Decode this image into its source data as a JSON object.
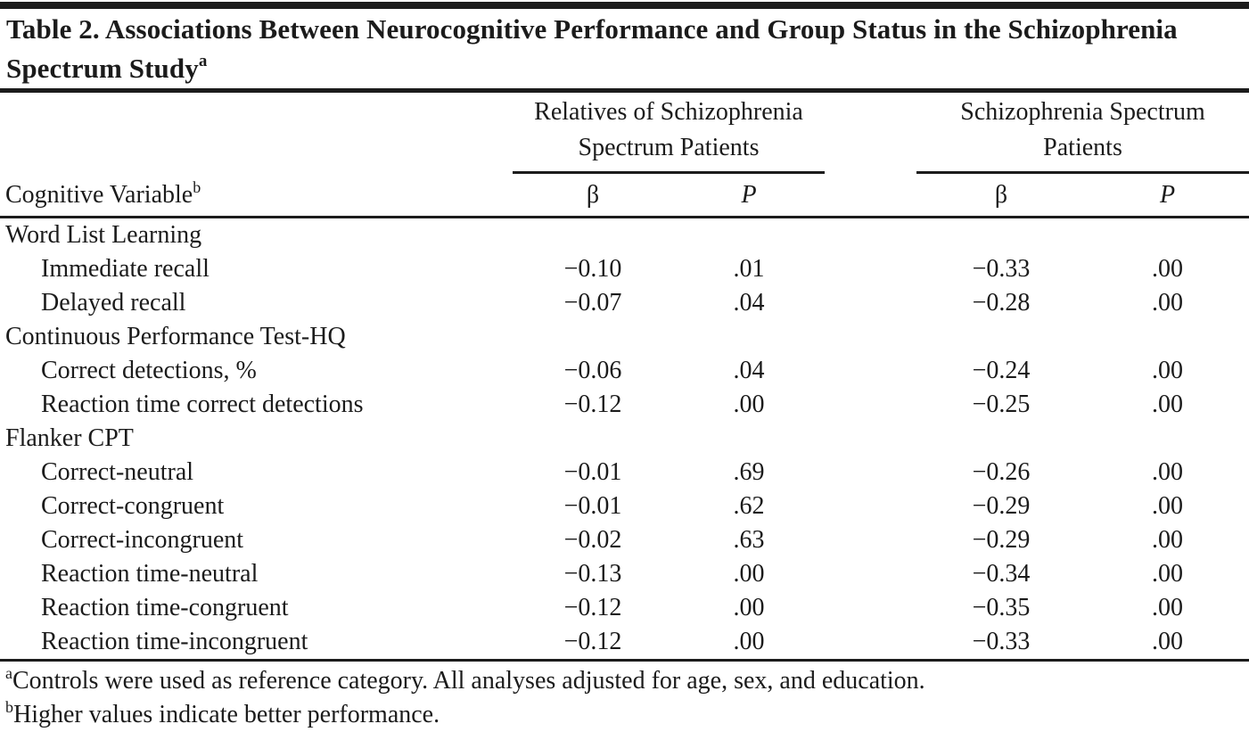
{
  "table": {
    "title": "Table 2. Associations Between Neurocognitive Performance and Group Status in the Schizophrenia Spectrum Study",
    "title_superscript": "a",
    "column_groups": {
      "relatives": "Relatives of Schizophrenia Spectrum Patients",
      "patients": "Schizophrenia Spectrum Patients"
    },
    "stub_header": "Cognitive Variable",
    "stub_header_superscript": "b",
    "beta_label": "β",
    "p_label": "P",
    "rows": [
      {
        "label": "Word List Learning",
        "indent": false,
        "b1": "",
        "p1": "",
        "b2": "",
        "p2": ""
      },
      {
        "label": "Immediate recall",
        "indent": true,
        "b1": "−0.10",
        "p1": ".01",
        "b2": "−0.33",
        "p2": ".00"
      },
      {
        "label": "Delayed recall",
        "indent": true,
        "b1": "−0.07",
        "p1": ".04",
        "b2": "−0.28",
        "p2": ".00"
      },
      {
        "label": "Continuous Performance Test-HQ",
        "indent": false,
        "b1": "",
        "p1": "",
        "b2": "",
        "p2": ""
      },
      {
        "label": "Correct detections, %",
        "indent": true,
        "b1": "−0.06",
        "p1": ".04",
        "b2": "−0.24",
        "p2": ".00"
      },
      {
        "label": "Reaction time correct detections",
        "indent": true,
        "b1": "−0.12",
        "p1": ".00",
        "b2": "−0.25",
        "p2": ".00"
      },
      {
        "label": "Flanker CPT",
        "indent": false,
        "b1": "",
        "p1": "",
        "b2": "",
        "p2": ""
      },
      {
        "label": "Correct-neutral",
        "indent": true,
        "b1": "−0.01",
        "p1": ".69",
        "b2": "−0.26",
        "p2": ".00"
      },
      {
        "label": "Correct-congruent",
        "indent": true,
        "b1": "−0.01",
        "p1": ".62",
        "b2": "−0.29",
        "p2": ".00"
      },
      {
        "label": "Correct-incongruent",
        "indent": true,
        "b1": "−0.02",
        "p1": ".63",
        "b2": "−0.29",
        "p2": ".00"
      },
      {
        "label": "Reaction time-neutral",
        "indent": true,
        "b1": "−0.13",
        "p1": ".00",
        "b2": "−0.34",
        "p2": ".00"
      },
      {
        "label": "Reaction time-congruent",
        "indent": true,
        "b1": "−0.12",
        "p1": ".00",
        "b2": "−0.35",
        "p2": ".00"
      },
      {
        "label": "Reaction time-incongruent",
        "indent": true,
        "b1": "−0.12",
        "p1": ".00",
        "b2": "−0.33",
        "p2": ".00"
      }
    ],
    "footnotes": [
      {
        "marker": "a",
        "text": "Controls were used as reference category. All analyses adjusted for age, sex, and education."
      },
      {
        "marker": "b",
        "text": "Higher values indicate better performance."
      }
    ],
    "colors": {
      "text": "#1b1b1b",
      "rule": "#1c1c1c",
      "background": "#ffffff"
    }
  }
}
